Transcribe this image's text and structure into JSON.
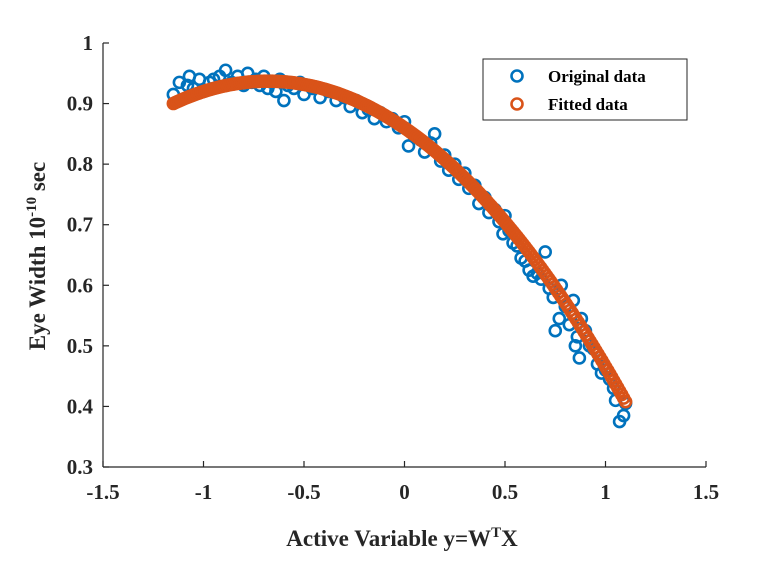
{
  "chart_data": {
    "type": "scatter",
    "title": "",
    "xlabel": {
      "main": "Active Variable y=W",
      "sup": "T",
      "tail": "X"
    },
    "ylabel": {
      "main": "Eye Width 10",
      "sup": "-10",
      "tail": " sec"
    },
    "xlim": [
      -1.5,
      1.5
    ],
    "ylim": [
      0.3,
      1.0
    ],
    "xticks": [
      -1.5,
      -1,
      -0.5,
      0,
      0.5,
      1,
      1.5
    ],
    "xtick_labels": [
      "-1.5",
      "-1",
      "-0.5",
      "0",
      "0.5",
      "1",
      "1.5"
    ],
    "yticks": [
      0.3,
      0.4,
      0.5,
      0.6,
      0.7,
      0.8,
      0.9,
      1.0
    ],
    "ytick_labels": [
      "0.3",
      "0.4",
      "0.5",
      "0.6",
      "0.7",
      "0.8",
      "0.9",
      "1"
    ],
    "grid": false,
    "legend_position": "top-right",
    "series": [
      {
        "name": "Original data",
        "color": "#0072BD",
        "marker": "open-circle",
        "points": [
          [
            -1.15,
            0.915
          ],
          [
            -1.12,
            0.935
          ],
          [
            -1.08,
            0.93
          ],
          [
            -1.07,
            0.945
          ],
          [
            -1.05,
            0.925
          ],
          [
            -1.02,
            0.94
          ],
          [
            -1.0,
            0.92
          ],
          [
            -0.97,
            0.935
          ],
          [
            -0.95,
            0.94
          ],
          [
            -0.92,
            0.945
          ],
          [
            -0.89,
            0.955
          ],
          [
            -0.86,
            0.935
          ],
          [
            -0.83,
            0.945
          ],
          [
            -0.8,
            0.93
          ],
          [
            -0.78,
            0.95
          ],
          [
            -0.76,
            0.935
          ],
          [
            -0.74,
            0.94
          ],
          [
            -0.72,
            0.93
          ],
          [
            -0.7,
            0.945
          ],
          [
            -0.68,
            0.925
          ],
          [
            -0.66,
            0.935
          ],
          [
            -0.64,
            0.92
          ],
          [
            -0.62,
            0.94
          ],
          [
            -0.6,
            0.905
          ],
          [
            -0.58,
            0.93
          ],
          [
            -0.55,
            0.925
          ],
          [
            -0.52,
            0.935
          ],
          [
            -0.5,
            0.915
          ],
          [
            -0.46,
            0.925
          ],
          [
            -0.42,
            0.91
          ],
          [
            -0.38,
            0.92
          ],
          [
            -0.34,
            0.905
          ],
          [
            -0.3,
            0.91
          ],
          [
            -0.27,
            0.895
          ],
          [
            -0.24,
            0.905
          ],
          [
            -0.21,
            0.885
          ],
          [
            -0.18,
            0.89
          ],
          [
            -0.15,
            0.875
          ],
          [
            -0.12,
            0.885
          ],
          [
            -0.09,
            0.87
          ],
          [
            -0.06,
            0.875
          ],
          [
            -0.03,
            0.86
          ],
          [
            0.0,
            0.87
          ],
          [
            0.02,
            0.83
          ],
          [
            0.05,
            0.845
          ],
          [
            0.08,
            0.84
          ],
          [
            0.1,
            0.82
          ],
          [
            0.13,
            0.835
          ],
          [
            0.15,
            0.85
          ],
          [
            0.18,
            0.805
          ],
          [
            0.2,
            0.815
          ],
          [
            0.22,
            0.79
          ],
          [
            0.25,
            0.8
          ],
          [
            0.27,
            0.775
          ],
          [
            0.3,
            0.785
          ],
          [
            0.32,
            0.76
          ],
          [
            0.35,
            0.765
          ],
          [
            0.37,
            0.735
          ],
          [
            0.4,
            0.745
          ],
          [
            0.42,
            0.72
          ],
          [
            0.45,
            0.725
          ],
          [
            0.47,
            0.705
          ],
          [
            0.49,
            0.685
          ],
          [
            0.5,
            0.715
          ],
          [
            0.52,
            0.69
          ],
          [
            0.54,
            0.67
          ],
          [
            0.56,
            0.665
          ],
          [
            0.58,
            0.645
          ],
          [
            0.6,
            0.64
          ],
          [
            0.62,
            0.625
          ],
          [
            0.64,
            0.615
          ],
          [
            0.66,
            0.62
          ],
          [
            0.68,
            0.61
          ],
          [
            0.7,
            0.655
          ],
          [
            0.72,
            0.595
          ],
          [
            0.74,
            0.58
          ],
          [
            0.75,
            0.525
          ],
          [
            0.77,
            0.545
          ],
          [
            0.78,
            0.6
          ],
          [
            0.8,
            0.565
          ],
          [
            0.82,
            0.535
          ],
          [
            0.84,
            0.575
          ],
          [
            0.85,
            0.5
          ],
          [
            0.86,
            0.515
          ],
          [
            0.87,
            0.48
          ],
          [
            0.88,
            0.545
          ],
          [
            0.9,
            0.525
          ],
          [
            0.92,
            0.5
          ],
          [
            0.94,
            0.495
          ],
          [
            0.96,
            0.47
          ],
          [
            0.98,
            0.455
          ],
          [
            1.0,
            0.46
          ],
          [
            1.02,
            0.445
          ],
          [
            1.04,
            0.43
          ],
          [
            1.05,
            0.41
          ],
          [
            1.07,
            0.375
          ],
          [
            1.09,
            0.385
          ],
          [
            1.1,
            0.405
          ]
        ]
      },
      {
        "name": "Fitted data",
        "color": "#D95319",
        "marker": "open-circle",
        "curve": {
          "vertex_x": -0.68,
          "vertex_y": 0.937,
          "a": -0.167
        },
        "points_x_range": [
          -1.15,
          1.1
        ],
        "point_count": 230
      }
    ]
  },
  "legend": {
    "items": [
      {
        "label": "Original data",
        "color": "#0072BD"
      },
      {
        "label": "Fitted data",
        "color": "#D95319"
      }
    ]
  }
}
